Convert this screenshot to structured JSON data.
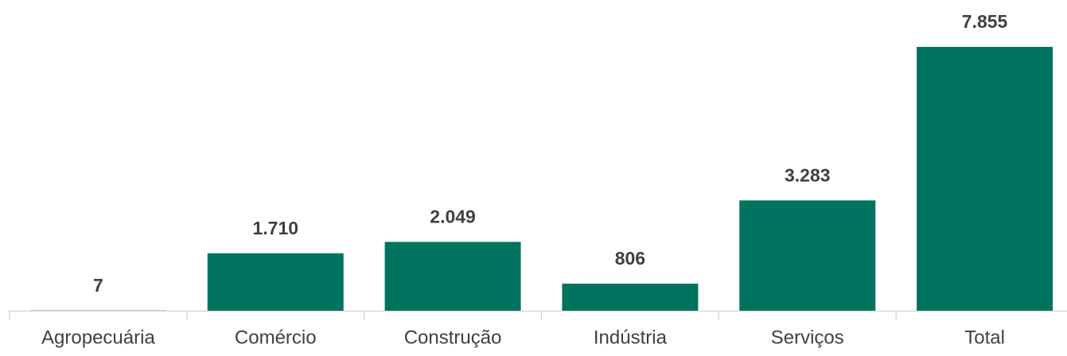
{
  "chart_data": {
    "type": "bar",
    "categories": [
      "Agropecuária",
      "Comércio",
      "Construção",
      "Indústria",
      "Serviços",
      "Total"
    ],
    "values": [
      7,
      1710,
      2049,
      806,
      3283,
      7855
    ],
    "value_labels": [
      "7",
      "1.710",
      "2.049",
      "806",
      "3.283",
      "7.855"
    ],
    "color": "#00745f"
  }
}
